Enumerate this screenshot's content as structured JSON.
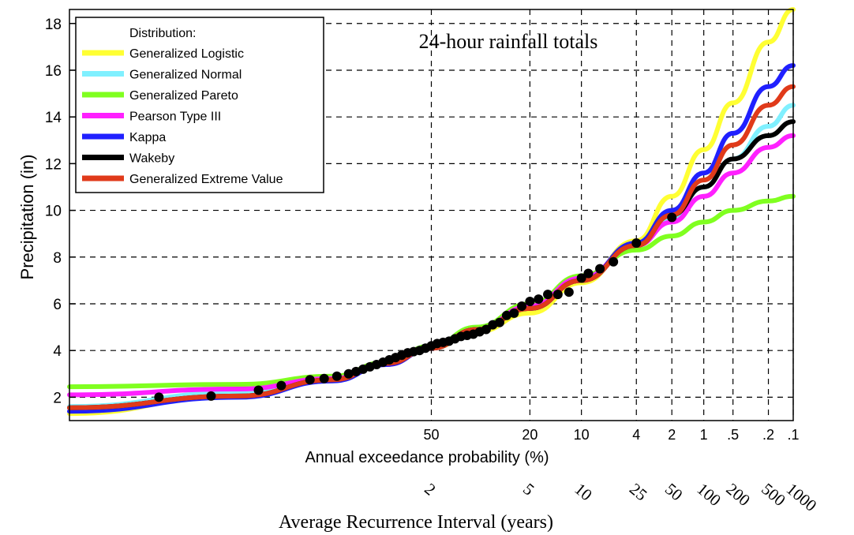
{
  "chart_data": {
    "type": "line",
    "title": "24-hour rainfall totals",
    "ylabel": "Precipitation (in)",
    "xlabel": "Annual exceedance probability (%)",
    "x2label": "Average Recurrence Interval (years)",
    "ylim": [
      1,
      18.6
    ],
    "y_ticks": [
      2,
      4,
      6,
      8,
      10,
      12,
      14,
      16,
      18
    ],
    "aep_tick_labels": [
      "50",
      "20",
      "10",
      "4",
      "2",
      "1",
      ".5",
      ".2",
      ".1"
    ],
    "ari_tick_labels": [
      "2",
      "5",
      "10",
      "25",
      "50",
      "100",
      "200",
      "500",
      "1000"
    ],
    "grid": true,
    "legend": {
      "title": "Distribution:",
      "position": "top-left"
    },
    "series": [
      {
        "name": "Generalized Logistic",
        "color": "#ffff33",
        "x_aep": [
          99.9,
          95,
          80,
          65,
          50,
          35,
          20,
          10,
          4,
          2,
          1,
          0.5,
          0.2,
          0.1
        ],
        "y": [
          1.3,
          2.1,
          2.8,
          3.4,
          4.1,
          4.8,
          5.6,
          6.9,
          8.7,
          10.6,
          12.6,
          14.6,
          17.2,
          18.6
        ]
      },
      {
        "name": "Generalized Normal",
        "color": "#80f0ff",
        "x_aep": [
          99.9,
          95,
          80,
          65,
          50,
          35,
          20,
          10,
          4,
          2,
          1,
          0.5,
          0.2,
          0.1
        ],
        "y": [
          1.6,
          2.2,
          2.8,
          3.5,
          4.2,
          5.0,
          5.8,
          7.0,
          8.5,
          9.7,
          11.0,
          12.2,
          13.6,
          14.5
        ]
      },
      {
        "name": "Generalized Pareto",
        "color": "#80ff20",
        "x_aep": [
          99.9,
          95,
          80,
          65,
          50,
          35,
          20,
          10,
          4,
          2,
          1,
          0.5,
          0.2,
          0.1
        ],
        "y": [
          2.45,
          2.55,
          2.9,
          3.5,
          4.2,
          5.0,
          6.0,
          7.2,
          8.3,
          8.9,
          9.5,
          10.0,
          10.4,
          10.6
        ]
      },
      {
        "name": "Pearson Type III",
        "color": "#ff20ff",
        "x_aep": [
          99.9,
          95,
          80,
          65,
          50,
          35,
          20,
          10,
          4,
          2,
          1,
          0.5,
          0.2,
          0.1
        ],
        "y": [
          2.1,
          2.35,
          2.8,
          3.4,
          4.1,
          4.9,
          5.9,
          7.1,
          8.5,
          9.5,
          10.6,
          11.6,
          12.7,
          13.2
        ]
      },
      {
        "name": "Kappa",
        "color": "#2020ff",
        "x_aep": [
          99.9,
          95,
          80,
          65,
          50,
          35,
          20,
          10,
          4,
          2,
          1,
          0.5,
          0.2,
          0.1
        ],
        "y": [
          1.4,
          2.0,
          2.7,
          3.4,
          4.1,
          4.9,
          5.8,
          7.0,
          8.6,
          10.0,
          11.6,
          13.3,
          15.3,
          16.2
        ]
      },
      {
        "name": "Wakeby",
        "color": "#000000",
        "x_aep": [
          99.9,
          95,
          80,
          65,
          50,
          35,
          20,
          10,
          4,
          2,
          1,
          0.5,
          0.2,
          0.1
        ],
        "y": [
          1.55,
          2.05,
          2.75,
          3.45,
          4.1,
          4.9,
          5.8,
          7.0,
          8.5,
          9.8,
          11.0,
          12.2,
          13.2,
          13.8
        ]
      },
      {
        "name": "Generalized Extreme Value",
        "color": "#e03a1a",
        "x_aep": [
          99.9,
          95,
          80,
          65,
          50,
          35,
          20,
          10,
          4,
          2,
          1,
          0.5,
          0.2,
          0.1
        ],
        "y": [
          1.55,
          2.05,
          2.75,
          3.45,
          4.1,
          4.9,
          5.8,
          7.0,
          8.5,
          9.8,
          11.3,
          12.8,
          14.5,
          15.3
        ]
      }
    ],
    "observed_points": {
      "x_aep": [
        99,
        97,
        93,
        90,
        85,
        82,
        79,
        76,
        74,
        72,
        70,
        68,
        66,
        64,
        62,
        60,
        58,
        56,
        54,
        52,
        50,
        48,
        46,
        44,
        42,
        40,
        38,
        36,
        34,
        32,
        30,
        28,
        26,
        24,
        22,
        20,
        18,
        16,
        14,
        12,
        10,
        9,
        7.5,
        6,
        4,
        2
      ],
      "y": [
        2.0,
        2.05,
        2.3,
        2.5,
        2.75,
        2.8,
        2.9,
        3.0,
        3.1,
        3.2,
        3.3,
        3.4,
        3.5,
        3.6,
        3.7,
        3.8,
        3.9,
        3.95,
        4.0,
        4.1,
        4.2,
        4.3,
        4.35,
        4.4,
        4.5,
        4.6,
        4.65,
        4.7,
        4.8,
        4.9,
        5.1,
        5.2,
        5.5,
        5.6,
        5.9,
        6.1,
        6.2,
        6.4,
        6.4,
        6.5,
        7.1,
        7.3,
        7.5,
        7.8,
        8.6,
        9.7
      ]
    }
  }
}
